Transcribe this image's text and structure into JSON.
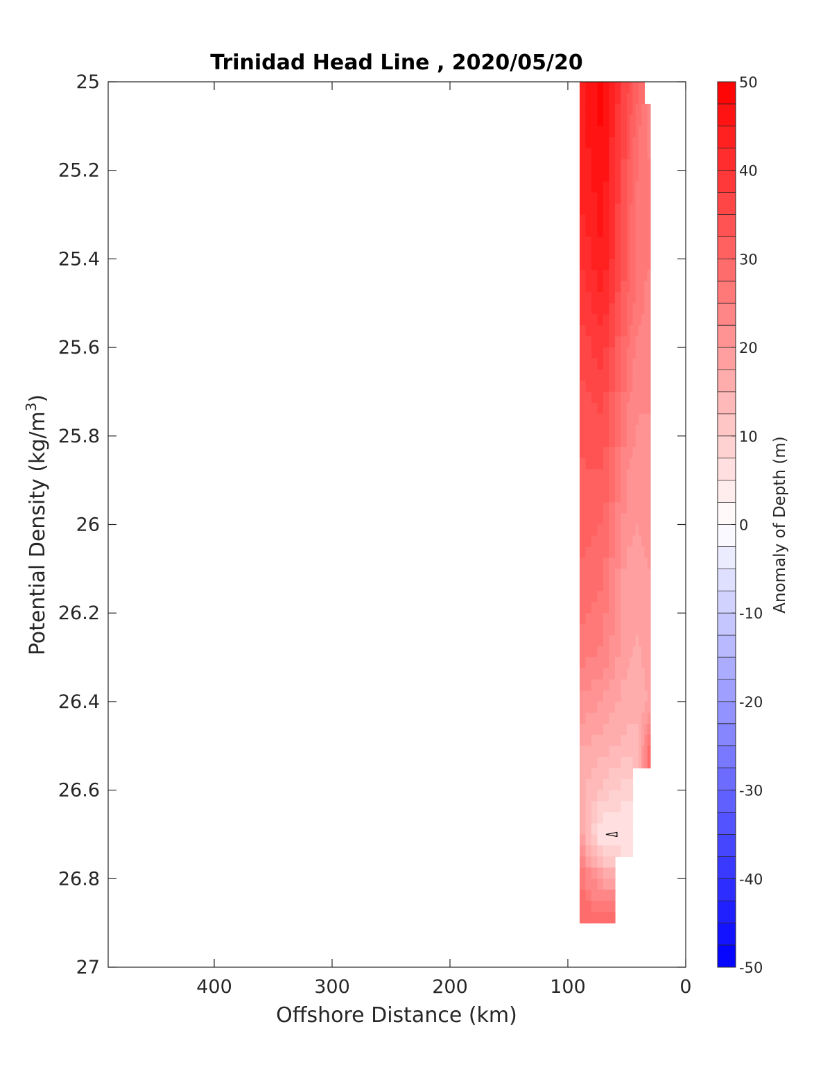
{
  "chart_data": {
    "type": "heatmap",
    "title": "Trinidad Head Line , 2020/05/20",
    "xlabel": "Offshore Distance (km)",
    "ylabel_main": "Potential Density (kg/m",
    "ylabel_sup": "3",
    "ylabel_close": ")",
    "x_reversed": true,
    "xlim": [
      0,
      490
    ],
    "ylim": [
      25,
      27
    ],
    "y_reversed": true,
    "x_ticks": [
      "400",
      "300",
      "200",
      "100",
      "0"
    ],
    "y_ticks": [
      "25",
      "25.2",
      "25.4",
      "25.6",
      "25.8",
      "26",
      "26.2",
      "26.4",
      "26.6",
      "26.8",
      "27"
    ],
    "colorbar": {
      "label": "Anomaly of Depth (m)",
      "range": [
        -50,
        50
      ],
      "ticks": [
        "50",
        "40",
        "30",
        "20",
        "10",
        "0",
        "-10",
        "-20",
        "-30",
        "-40",
        "-50"
      ],
      "levels": 40,
      "max_color": "#ff0000",
      "mid_color": "#ffffff",
      "min_color": "#0000ff"
    },
    "x": [
      90,
      70,
      50,
      40,
      30
    ],
    "y": [
      25.0,
      25.1,
      25.2,
      25.3,
      25.4,
      25.5,
      25.6,
      25.7,
      25.8,
      25.9,
      26.0,
      26.1,
      26.2,
      26.3,
      26.4,
      26.5,
      26.6,
      26.7,
      26.8,
      26.9
    ],
    "z": [
      [
        44,
        48,
        36,
        30,
        null
      ],
      [
        44,
        48,
        34,
        28,
        24
      ],
      [
        43,
        47,
        33,
        27,
        25
      ],
      [
        42,
        46,
        32,
        26,
        25
      ],
      [
        40,
        45,
        32,
        26,
        25
      ],
      [
        38,
        42,
        30,
        26,
        24
      ],
      [
        36,
        39,
        28,
        24,
        24
      ],
      [
        34,
        36,
        26,
        23,
        23
      ],
      [
        33,
        34,
        24,
        22,
        22
      ],
      [
        32,
        32,
        22,
        21,
        21
      ],
      [
        31,
        30,
        21,
        20,
        21
      ],
      [
        30,
        28,
        19,
        19,
        20
      ],
      [
        28,
        26,
        18,
        18,
        20
      ],
      [
        26,
        24,
        18,
        17,
        19
      ],
      [
        22,
        20,
        16,
        16,
        18
      ],
      [
        18,
        16,
        14,
        14,
        30
      ],
      [
        16,
        12,
        8,
        null,
        null
      ],
      [
        18,
        4,
        6,
        null,
        null
      ],
      [
        28,
        18,
        null,
        null,
        null
      ],
      [
        30,
        30,
        null,
        null,
        null
      ]
    ],
    "contour_annotation": {
      "x": 63,
      "y": 26.7
    }
  }
}
